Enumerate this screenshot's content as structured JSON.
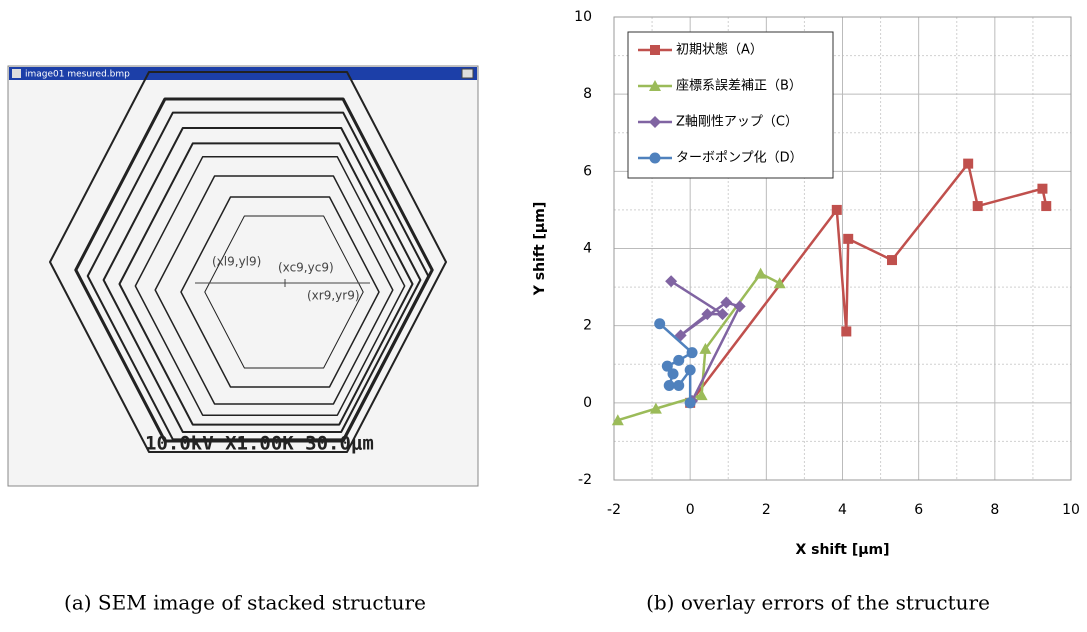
{
  "image_panel": {
    "window_title": "image01 mesured.bmp",
    "label_left": "(xl9,yl9)",
    "label_center": "(xc9,yc9)",
    "label_right": "(xr9,yr9)",
    "info_bar": "10.0kV X1.00K 30.0μm"
  },
  "captions": [
    "(a) SEM image of stacked structure",
    "(b) overlay errors of the structure"
  ],
  "chart_data": {
    "type": "line",
    "xlabel": "X shift [µm]",
    "ylabel": "Y shift [µm]",
    "xlim": [
      -2,
      10
    ],
    "ylim": [
      -2,
      10
    ],
    "xticks": [
      -2,
      0,
      2,
      4,
      6,
      8,
      10
    ],
    "yticks": [
      -2,
      0,
      2,
      4,
      6,
      8,
      10
    ],
    "grid": true,
    "minor_grid": true,
    "legend": "upper left",
    "series": [
      {
        "name": "初期状態（A）",
        "color": "#c0504d",
        "marker": "square",
        "x": [
          0,
          3.85,
          4.1,
          4.15,
          5.3,
          7.3,
          7.55,
          9.25,
          9.35
        ],
        "values": [
          0,
          5.0,
          1.85,
          4.25,
          3.7,
          6.2,
          5.1,
          5.55,
          5.1
        ]
      },
      {
        "name": "座標系誤差補正（B）",
        "color": "#9bbb59",
        "marker": "triangle",
        "x": [
          -1.9,
          -0.9,
          0.3,
          0.4,
          1.85,
          2.35
        ],
        "values": [
          -0.45,
          -0.15,
          0.2,
          1.4,
          3.35,
          3.1
        ]
      },
      {
        "name": "Z軸剛性アップ（C）",
        "color": "#8064a2",
        "marker": "diamond",
        "x": [
          -0.5,
          0.85,
          0.45,
          -0.25,
          0.95,
          1.3,
          0.05
        ],
        "values": [
          3.15,
          2.3,
          2.3,
          1.75,
          2.6,
          2.5,
          0.05
        ]
      },
      {
        "name": "ターボポンプ化（D）",
        "color": "#4f81bd",
        "marker": "circle",
        "x": [
          -0.8,
          0.05,
          -0.3,
          -0.6,
          -0.45,
          -0.55,
          -0.3,
          0.0,
          0.0
        ],
        "values": [
          2.05,
          1.3,
          1.1,
          0.95,
          0.75,
          0.45,
          0.45,
          0.85,
          0
        ]
      }
    ]
  }
}
